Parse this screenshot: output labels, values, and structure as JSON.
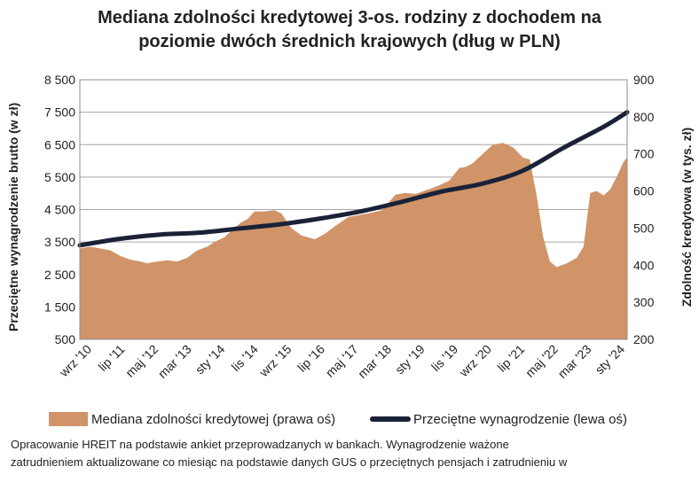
{
  "chart_data": {
    "type": "area",
    "title_line1": "Mediana zdolności kredytowej 3-os. rodziny z dochodem na",
    "title_line2": "poziomie dwóch średnich krajowych (dług w PLN)",
    "y_left_label": "Przeciętne wynagrodzenie brutto (w zł)",
    "y_right_label": "Zdolność kredytowa (w tys. zł)",
    "y_left_ticks": [
      "8 500",
      "7 500",
      "6 500",
      "5 500",
      "4 500",
      "3 500",
      "2 500",
      "1 500",
      "500"
    ],
    "y_right_ticks": [
      "900",
      "800",
      "700",
      "600",
      "500",
      "400",
      "300",
      "200"
    ],
    "y_left_range": [
      500,
      8500
    ],
    "y_right_range": [
      200,
      900
    ],
    "x_ticks": [
      "wrz '10",
      "lip '11",
      "maj '12",
      "mar '13",
      "sty '14",
      "lis '14",
      "wrz '15",
      "lip '16",
      "maj '17",
      "mar '18",
      "sty '19",
      "lis '19",
      "wrz '20",
      "lip '21",
      "maj '22",
      "mar '23",
      "sty '24"
    ],
    "grid": "horizontal",
    "legend_position": "bottom",
    "series": [
      {
        "name": "Mediana zdolności kredytowej (prawa oś)",
        "axis": "right",
        "kind": "area",
        "color": "#d09468",
        "points": [
          [
            "2010-09",
            445
          ],
          [
            "2010-12",
            450
          ],
          [
            "2011-03",
            445
          ],
          [
            "2011-06",
            440
          ],
          [
            "2011-09",
            425
          ],
          [
            "2011-12",
            415
          ],
          [
            "2012-03",
            410
          ],
          [
            "2012-05",
            405
          ],
          [
            "2012-08",
            410
          ],
          [
            "2012-11",
            413
          ],
          [
            "2013-02",
            410
          ],
          [
            "2013-05",
            420
          ],
          [
            "2013-08",
            440
          ],
          [
            "2013-11",
            450
          ],
          [
            "2014-01",
            462
          ],
          [
            "2014-04",
            475
          ],
          [
            "2014-07",
            500
          ],
          [
            "2014-09",
            515
          ],
          [
            "2014-11",
            525
          ],
          [
            "2015-01",
            545
          ],
          [
            "2015-04",
            545
          ],
          [
            "2015-07",
            548
          ],
          [
            "2015-09",
            540
          ],
          [
            "2015-12",
            500
          ],
          [
            "2016-03",
            480
          ],
          [
            "2016-07",
            470
          ],
          [
            "2016-10",
            485
          ],
          [
            "2017-01",
            505
          ],
          [
            "2017-05",
            530
          ],
          [
            "2017-08",
            535
          ],
          [
            "2017-11",
            540
          ],
          [
            "2018-03",
            548
          ],
          [
            "2018-07",
            590
          ],
          [
            "2018-10",
            595
          ],
          [
            "2019-01",
            592
          ],
          [
            "2019-05",
            605
          ],
          [
            "2019-08",
            615
          ],
          [
            "2019-11",
            628
          ],
          [
            "2020-02",
            662
          ],
          [
            "2020-04",
            665
          ],
          [
            "2020-06",
            675
          ],
          [
            "2020-09",
            700
          ],
          [
            "2020-12",
            725
          ],
          [
            "2021-03",
            730
          ],
          [
            "2021-06",
            718
          ],
          [
            "2021-09",
            690
          ],
          [
            "2021-11",
            685
          ],
          [
            "2022-01",
            590
          ],
          [
            "2022-03",
            475
          ],
          [
            "2022-05",
            410
          ],
          [
            "2022-07",
            395
          ],
          [
            "2022-10",
            405
          ],
          [
            "2023-01",
            420
          ],
          [
            "2023-03",
            450
          ],
          [
            "2023-05",
            595
          ],
          [
            "2023-07",
            600
          ],
          [
            "2023-09",
            588
          ],
          [
            "2023-11",
            605
          ],
          [
            "2024-01",
            640
          ],
          [
            "2024-03",
            680
          ],
          [
            "2024-04",
            690
          ]
        ]
      },
      {
        "name": "Przeciętne wynagrodzenie (lewa oś)",
        "axis": "left",
        "kind": "line",
        "color": "#1a2238",
        "points": [
          [
            "2010-09",
            3400
          ],
          [
            "2011-09",
            3600
          ],
          [
            "2012-09",
            3730
          ],
          [
            "2013-09",
            3790
          ],
          [
            "2014-09",
            3920
          ],
          [
            "2015-09",
            4050
          ],
          [
            "2016-09",
            4230
          ],
          [
            "2017-09",
            4450
          ],
          [
            "2018-09",
            4740
          ],
          [
            "2019-09",
            5060
          ],
          [
            "2020-09",
            5300
          ],
          [
            "2021-09",
            5700
          ],
          [
            "2022-09",
            6400
          ],
          [
            "2023-09",
            7050
          ],
          [
            "2024-04",
            7500
          ]
        ]
      }
    ]
  },
  "source": {
    "line1": "Opracowanie HREIT na podstawie ankiet przeprowadzanych w bankach. Wynagrodzenie ważone",
    "line2": "zatrudnieniem aktualizowane co miesiąc na podstawie danych GUS o przeciętnych pensjach i zatrudnieniu w"
  }
}
